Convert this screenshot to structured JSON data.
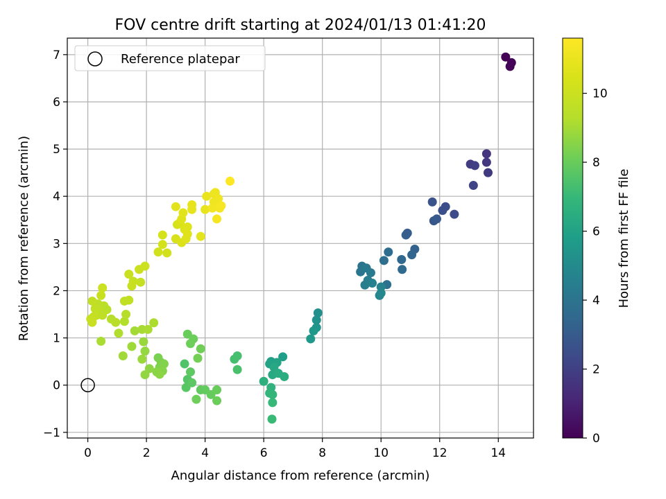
{
  "chart_data": {
    "type": "scatter",
    "title": "FOV centre drift starting at 2024/01/13 01:41:20",
    "xlabel": "Angular distance from reference (arcmin)",
    "ylabel": "Rotation from reference (arcmin)",
    "xlim": [
      -0.7,
      15.2
    ],
    "ylim": [
      -1.12,
      7.35
    ],
    "xticks": [
      0,
      2,
      4,
      6,
      8,
      10,
      12,
      14
    ],
    "yticks": [
      -1,
      0,
      1,
      2,
      3,
      4,
      5,
      6,
      7
    ],
    "grid": true,
    "legend": {
      "placement": "top-left",
      "entries": [
        "Reference platepar"
      ]
    },
    "reference_point": {
      "x": 0,
      "y": 0
    },
    "colorbar": {
      "label": "Hours from first FF file",
      "range": [
        0,
        11.6
      ],
      "ticks": [
        0,
        2,
        4,
        6,
        8,
        10
      ],
      "colormap": "viridis"
    },
    "series": [
      {
        "points": [
          {
            "x": 14.25,
            "y": 6.95,
            "c": 0.0
          },
          {
            "x": 14.45,
            "y": 6.83,
            "c": 0.05
          },
          {
            "x": 14.4,
            "y": 6.75,
            "c": 0.1
          },
          {
            "x": 13.6,
            "y": 4.9,
            "c": 1.6
          },
          {
            "x": 13.6,
            "y": 4.72,
            "c": 1.7
          },
          {
            "x": 13.65,
            "y": 4.5,
            "c": 1.8
          },
          {
            "x": 13.05,
            "y": 4.68,
            "c": 1.9
          },
          {
            "x": 13.2,
            "y": 4.65,
            "c": 2.0
          },
          {
            "x": 13.15,
            "y": 4.23,
            "c": 2.1
          },
          {
            "x": 11.75,
            "y": 3.88,
            "c": 2.7
          },
          {
            "x": 12.1,
            "y": 3.7,
            "c": 2.6
          },
          {
            "x": 12.2,
            "y": 3.78,
            "c": 2.5
          },
          {
            "x": 12.5,
            "y": 3.62,
            "c": 2.4
          },
          {
            "x": 11.8,
            "y": 3.48,
            "c": 2.8
          },
          {
            "x": 11.9,
            "y": 3.52,
            "c": 2.9
          },
          {
            "x": 10.85,
            "y": 3.18,
            "c": 3.2
          },
          {
            "x": 10.9,
            "y": 3.22,
            "c": 3.1
          },
          {
            "x": 11.15,
            "y": 2.88,
            "c": 3.3
          },
          {
            "x": 11.05,
            "y": 2.76,
            "c": 3.4
          },
          {
            "x": 10.7,
            "y": 2.66,
            "c": 3.5
          },
          {
            "x": 10.72,
            "y": 2.45,
            "c": 3.6
          },
          {
            "x": 10.25,
            "y": 2.82,
            "c": 3.7
          },
          {
            "x": 10.1,
            "y": 2.64,
            "c": 3.8
          },
          {
            "x": 10.2,
            "y": 2.13,
            "c": 3.9
          },
          {
            "x": 9.35,
            "y": 2.52,
            "c": 4.0
          },
          {
            "x": 9.3,
            "y": 2.4,
            "c": 4.1
          },
          {
            "x": 9.5,
            "y": 2.48,
            "c": 4.2
          },
          {
            "x": 9.65,
            "y": 2.38,
            "c": 4.3
          },
          {
            "x": 9.55,
            "y": 2.22,
            "c": 4.4
          },
          {
            "x": 9.45,
            "y": 2.12,
            "c": 4.5
          },
          {
            "x": 9.7,
            "y": 2.16,
            "c": 4.6
          },
          {
            "x": 10.0,
            "y": 2.08,
            "c": 4.7
          },
          {
            "x": 9.95,
            "y": 1.9,
            "c": 4.8
          },
          {
            "x": 10.0,
            "y": 1.95,
            "c": 4.9
          },
          {
            "x": 7.85,
            "y": 1.53,
            "c": 5.2
          },
          {
            "x": 7.8,
            "y": 1.38,
            "c": 5.3
          },
          {
            "x": 7.8,
            "y": 1.22,
            "c": 5.4
          },
          {
            "x": 7.7,
            "y": 1.15,
            "c": 5.5
          },
          {
            "x": 7.6,
            "y": 0.98,
            "c": 5.6
          },
          {
            "x": 6.65,
            "y": 0.6,
            "c": 5.8
          },
          {
            "x": 6.25,
            "y": 0.5,
            "c": 5.9
          },
          {
            "x": 6.2,
            "y": 0.45,
            "c": 6.0
          },
          {
            "x": 6.45,
            "y": 0.48,
            "c": 6.1
          },
          {
            "x": 6.35,
            "y": 0.38,
            "c": 6.2
          },
          {
            "x": 6.3,
            "y": 0.22,
            "c": 6.3
          },
          {
            "x": 6.5,
            "y": 0.25,
            "c": 6.4
          },
          {
            "x": 6.7,
            "y": 0.18,
            "c": 6.5
          },
          {
            "x": 6.0,
            "y": 0.08,
            "c": 6.6
          },
          {
            "x": 6.25,
            "y": -0.05,
            "c": 6.7
          },
          {
            "x": 6.2,
            "y": -0.17,
            "c": 6.8
          },
          {
            "x": 6.3,
            "y": -0.2,
            "c": 6.9
          },
          {
            "x": 6.3,
            "y": -0.37,
            "c": 7.0
          },
          {
            "x": 6.28,
            "y": -0.72,
            "c": 7.05
          },
          {
            "x": 5.0,
            "y": 0.55,
            "c": 7.3
          },
          {
            "x": 5.1,
            "y": 0.62,
            "c": 7.35
          },
          {
            "x": 5.1,
            "y": 0.33,
            "c": 7.4
          },
          {
            "x": 3.3,
            "y": 0.45,
            "c": 7.5
          },
          {
            "x": 3.4,
            "y": 0.12,
            "c": 7.6
          },
          {
            "x": 3.35,
            "y": -0.05,
            "c": 7.7
          },
          {
            "x": 3.55,
            "y": 0.05,
            "c": 7.75
          },
          {
            "x": 3.5,
            "y": 0.28,
            "c": 7.8
          },
          {
            "x": 3.85,
            "y": -0.1,
            "c": 7.85
          },
          {
            "x": 4.0,
            "y": -0.1,
            "c": 7.9
          },
          {
            "x": 4.2,
            "y": -0.2,
            "c": 7.95
          },
          {
            "x": 4.4,
            "y": -0.1,
            "c": 8.0
          },
          {
            "x": 4.4,
            "y": -0.33,
            "c": 8.05
          },
          {
            "x": 3.7,
            "y": -0.3,
            "c": 8.1
          },
          {
            "x": 3.4,
            "y": 1.08,
            "c": 8.0
          },
          {
            "x": 3.6,
            "y": 0.98,
            "c": 8.05
          },
          {
            "x": 3.5,
            "y": 0.88,
            "c": 8.1
          },
          {
            "x": 3.85,
            "y": 0.77,
            "c": 8.15
          },
          {
            "x": 3.75,
            "y": 0.57,
            "c": 8.2
          },
          {
            "x": 2.4,
            "y": 0.58,
            "c": 8.3
          },
          {
            "x": 2.5,
            "y": 0.48,
            "c": 8.35
          },
          {
            "x": 2.45,
            "y": 0.38,
            "c": 8.4
          },
          {
            "x": 2.6,
            "y": 0.45,
            "c": 8.45
          },
          {
            "x": 2.55,
            "y": 0.3,
            "c": 8.5
          },
          {
            "x": 2.35,
            "y": 0.28,
            "c": 8.55
          },
          {
            "x": 2.45,
            "y": 0.23,
            "c": 8.6
          },
          {
            "x": 2.1,
            "y": 0.35,
            "c": 8.65
          },
          {
            "x": 1.95,
            "y": 0.22,
            "c": 8.7
          },
          {
            "x": 1.95,
            "y": 0.72,
            "c": 8.75
          },
          {
            "x": 1.9,
            "y": 0.92,
            "c": 8.8
          },
          {
            "x": 1.85,
            "y": 0.55,
            "c": 8.85
          },
          {
            "x": 1.5,
            "y": 0.82,
            "c": 8.9
          },
          {
            "x": 1.2,
            "y": 0.62,
            "c": 8.95
          },
          {
            "x": 1.6,
            "y": 1.15,
            "c": 9.0
          },
          {
            "x": 1.85,
            "y": 1.18,
            "c": 9.05
          },
          {
            "x": 2.05,
            "y": 1.18,
            "c": 9.1
          },
          {
            "x": 2.25,
            "y": 1.32,
            "c": 9.15
          },
          {
            "x": 1.05,
            "y": 1.1,
            "c": 9.2
          },
          {
            "x": 1.25,
            "y": 1.35,
            "c": 9.25
          },
          {
            "x": 1.3,
            "y": 1.5,
            "c": 9.3
          },
          {
            "x": 0.45,
            "y": 0.93,
            "c": 9.1
          },
          {
            "x": 0.8,
            "y": 1.4,
            "c": 9.35
          },
          {
            "x": 0.95,
            "y": 1.33,
            "c": 9.4
          },
          {
            "x": 0.55,
            "y": 1.68,
            "c": 9.5
          },
          {
            "x": 0.65,
            "y": 1.6,
            "c": 9.45
          },
          {
            "x": 0.35,
            "y": 1.72,
            "c": 9.55
          },
          {
            "x": 0.4,
            "y": 1.55,
            "c": 9.6
          },
          {
            "x": 0.25,
            "y": 1.62,
            "c": 9.65
          },
          {
            "x": 0.15,
            "y": 1.78,
            "c": 9.7
          },
          {
            "x": 0.3,
            "y": 1.48,
            "c": 9.75
          },
          {
            "x": 0.2,
            "y": 1.45,
            "c": 9.8
          },
          {
            "x": 0.1,
            "y": 1.4,
            "c": 9.85
          },
          {
            "x": 0.15,
            "y": 1.33,
            "c": 9.9
          },
          {
            "x": 0.5,
            "y": 1.48,
            "c": 9.6
          },
          {
            "x": 0.45,
            "y": 1.9,
            "c": 9.95
          },
          {
            "x": 0.5,
            "y": 2.06,
            "c": 10.0
          },
          {
            "x": 1.8,
            "y": 2.18,
            "c": 9.8
          },
          {
            "x": 1.55,
            "y": 2.2,
            "c": 9.85
          },
          {
            "x": 1.5,
            "y": 2.1,
            "c": 9.9
          },
          {
            "x": 1.4,
            "y": 2.35,
            "c": 9.95
          },
          {
            "x": 1.75,
            "y": 2.45,
            "c": 10.0
          },
          {
            "x": 1.95,
            "y": 2.52,
            "c": 10.05
          },
          {
            "x": 1.4,
            "y": 1.8,
            "c": 9.7
          },
          {
            "x": 1.25,
            "y": 1.78,
            "c": 9.65
          },
          {
            "x": 2.4,
            "y": 2.82,
            "c": 10.2
          },
          {
            "x": 2.7,
            "y": 2.8,
            "c": 10.25
          },
          {
            "x": 2.55,
            "y": 2.98,
            "c": 10.3
          },
          {
            "x": 2.55,
            "y": 3.18,
            "c": 10.35
          },
          {
            "x": 3.0,
            "y": 3.1,
            "c": 10.4
          },
          {
            "x": 3.05,
            "y": 3.4,
            "c": 10.45
          },
          {
            "x": 3.15,
            "y": 3.45,
            "c": 10.5
          },
          {
            "x": 3.2,
            "y": 3.02,
            "c": 10.55
          },
          {
            "x": 3.3,
            "y": 3.3,
            "c": 10.6
          },
          {
            "x": 3.4,
            "y": 3.35,
            "c": 10.62
          },
          {
            "x": 3.35,
            "y": 3.1,
            "c": 10.65
          },
          {
            "x": 3.4,
            "y": 3.2,
            "c": 10.68
          },
          {
            "x": 3.2,
            "y": 3.52,
            "c": 10.7
          },
          {
            "x": 3.25,
            "y": 3.65,
            "c": 10.72
          },
          {
            "x": 3.0,
            "y": 3.78,
            "c": 10.75
          },
          {
            "x": 3.85,
            "y": 3.15,
            "c": 10.8
          },
          {
            "x": 3.55,
            "y": 3.72,
            "c": 10.85
          },
          {
            "x": 3.55,
            "y": 3.82,
            "c": 10.9
          },
          {
            "x": 4.0,
            "y": 3.72,
            "c": 10.95
          },
          {
            "x": 4.05,
            "y": 4.0,
            "c": 11.0
          },
          {
            "x": 4.3,
            "y": 4.05,
            "c": 11.05
          },
          {
            "x": 4.35,
            "y": 4.08,
            "c": 11.1
          },
          {
            "x": 4.45,
            "y": 3.95,
            "c": 11.15
          },
          {
            "x": 4.3,
            "y": 3.88,
            "c": 11.2
          },
          {
            "x": 4.25,
            "y": 3.75,
            "c": 11.25
          },
          {
            "x": 4.5,
            "y": 3.75,
            "c": 11.3
          },
          {
            "x": 4.4,
            "y": 3.52,
            "c": 11.35
          },
          {
            "x": 4.55,
            "y": 3.8,
            "c": 11.4
          },
          {
            "x": 4.85,
            "y": 4.32,
            "c": 11.6
          }
        ]
      }
    ]
  }
}
